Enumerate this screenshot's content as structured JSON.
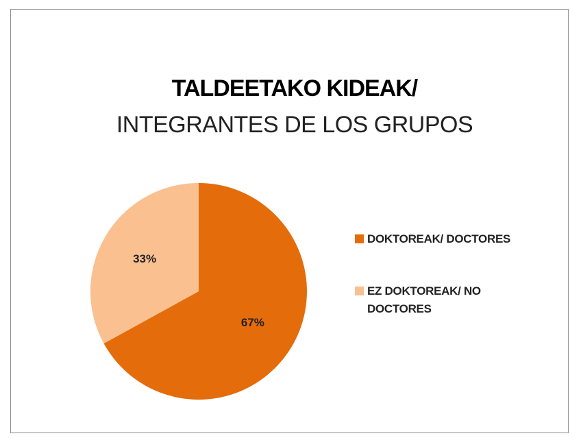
{
  "chart_data": {
    "type": "pie",
    "title": "TALDEETAKO KIDEAK/",
    "subtitle": "INTEGRANTES DE LOS GRUPOS",
    "categories": [
      "DOKTOREAK/ DOCTORES",
      "EZ DOKTOREAK/ NO DOCTORES"
    ],
    "values": [
      67,
      33
    ],
    "value_labels": [
      "67%",
      "33%"
    ],
    "colors": [
      "#e46c0a",
      "#fac090"
    ],
    "legend": "right"
  }
}
